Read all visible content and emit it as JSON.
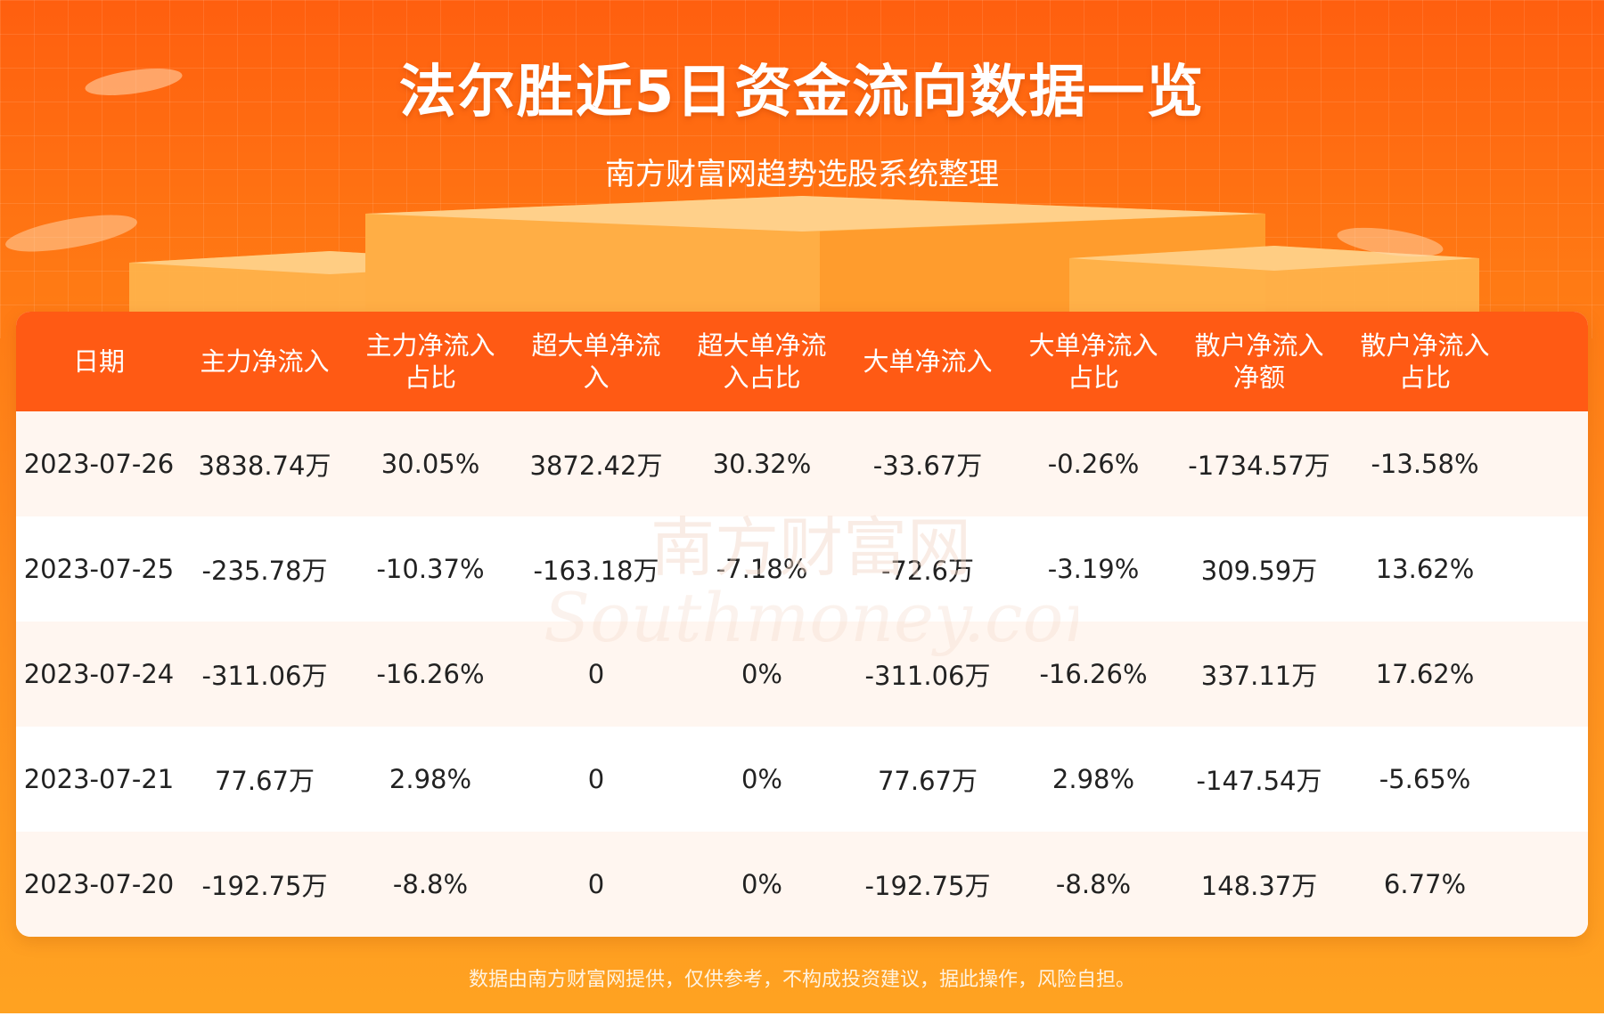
{
  "header": {
    "title": "法尔胜近5日资金流向数据一览",
    "subtitle": "南方财富网趋势选股系统整理"
  },
  "chart_data": {
    "type": "table",
    "columns": [
      "日期",
      "主力净流入",
      "主力净流入\n占比",
      "超大单净流\n入",
      "超大单净流\n入占比",
      "大单净流入",
      "大单净流入\n占比",
      "散户净流入\n净额",
      "散户净流入\n占比"
    ],
    "rows": [
      [
        "2023-07-26",
        "3838.74万",
        "30.05%",
        "3872.42万",
        "30.32%",
        "-33.67万",
        "-0.26%",
        "-1734.57万",
        "-13.58%"
      ],
      [
        "2023-07-25",
        "-235.78万",
        "-10.37%",
        "-163.18万",
        "-7.18%",
        "-72.6万",
        "-3.19%",
        "309.59万",
        "13.62%"
      ],
      [
        "2023-07-24",
        "-311.06万",
        "-16.26%",
        "0",
        "0%",
        "-311.06万",
        "-16.26%",
        "337.11万",
        "17.62%"
      ],
      [
        "2023-07-21",
        "77.67万",
        "2.98%",
        "0",
        "0%",
        "77.67万",
        "2.98%",
        "-147.54万",
        "-5.65%"
      ],
      [
        "2023-07-20",
        "-192.75万",
        "-8.8%",
        "0",
        "0%",
        "-192.75万",
        "-8.8%",
        "148.37万",
        "6.77%"
      ]
    ]
  },
  "watermark": {
    "cn": "南方财富网",
    "en": "Southmoney.com"
  },
  "footer": {
    "disclaimer": "数据由南方财富网提供，仅供参考，不构成投资建议，据此操作，风险自担。"
  },
  "colors": {
    "header_bg": "#ff5a14",
    "row_alt_bg": "#fff6f0",
    "accent": "#ff7a14"
  }
}
